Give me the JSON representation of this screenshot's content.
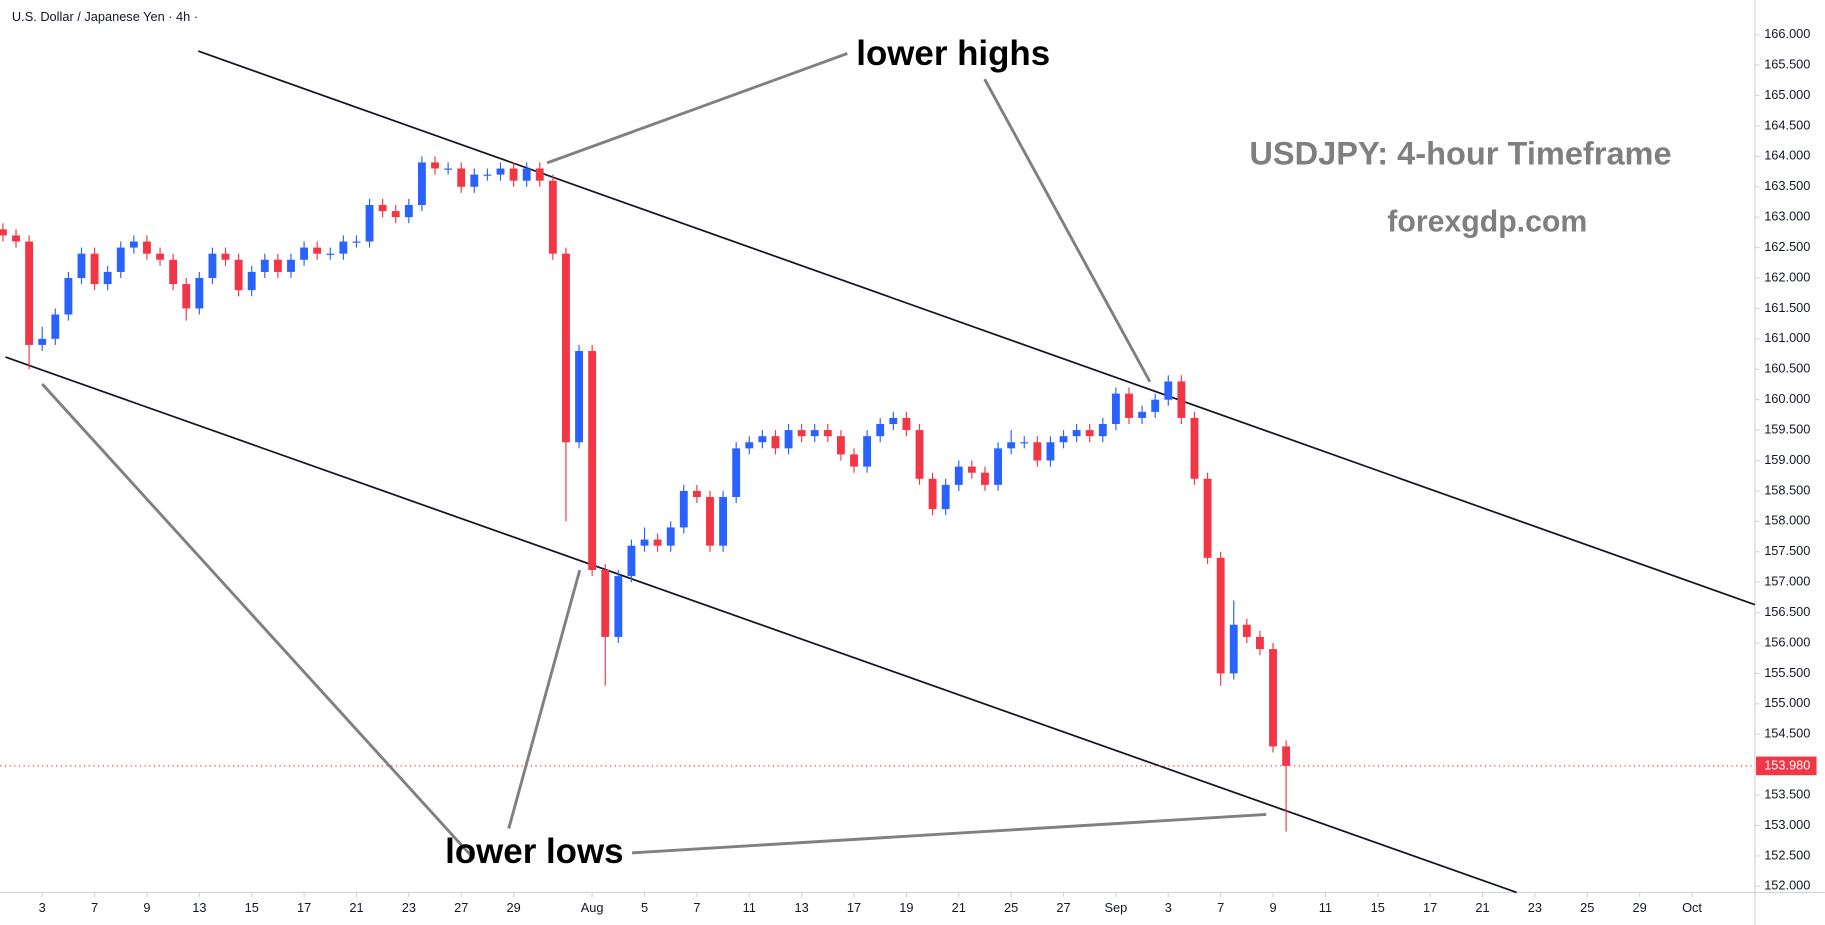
{
  "chart_data": {
    "type": "candlestick",
    "title": "U.S. Dollar / Japanese Yen · 4h ·",
    "annotations": [
      "lower highs",
      "lower lows",
      "USDJPY: 4-hour Timeframe",
      "forexgdp.com"
    ],
    "up_color": "#2962ff",
    "down_color": "#f23645",
    "x": [
      -1.5,
      -1,
      -0.5,
      0,
      0.5,
      1,
      1.5,
      2,
      2.5,
      3,
      3.5,
      4,
      4.5,
      5,
      5.5,
      6,
      6.5,
      7,
      7.5,
      8,
      8.5,
      9,
      9.5,
      10,
      10.5,
      11,
      11.5,
      12,
      12.5,
      13,
      13.5,
      14,
      14.5,
      15,
      15.5,
      16,
      16.5,
      17,
      17.5,
      18,
      18.5,
      19,
      19.5,
      20,
      20.5,
      21,
      21.5,
      22,
      22.5,
      23,
      23.5,
      24,
      24.5,
      25,
      25.5,
      26,
      26.5,
      27,
      27.5,
      28,
      28.5,
      29,
      29.5,
      30,
      30.5,
      31,
      31.5,
      32,
      32.5,
      33,
      33.5,
      34,
      34.5,
      35,
      35.5,
      36,
      36.5,
      37,
      37.5,
      38,
      38.5,
      39,
      39.5,
      40,
      40.5,
      41,
      41.5,
      42,
      42.5,
      43,
      43.5,
      44,
      44.5,
      45,
      45.5,
      46,
      46.5,
      47,
      47.5
    ],
    "open": [
      162.8,
      162.7,
      162.6,
      160.9,
      161.0,
      161.4,
      162.0,
      162.4,
      161.9,
      162.1,
      162.5,
      162.6,
      162.4,
      162.3,
      161.9,
      161.5,
      162.0,
      162.4,
      162.3,
      161.8,
      162.1,
      162.3,
      162.1,
      162.3,
      162.5,
      162.4,
      162.4,
      162.6,
      162.6,
      163.2,
      163.1,
      163.0,
      163.2,
      163.9,
      163.8,
      163.8,
      163.5,
      163.7,
      163.7,
      163.8,
      163.6,
      163.8,
      163.6,
      162.4,
      159.3,
      160.8,
      157.2,
      156.1,
      157.1,
      157.6,
      157.7,
      157.6,
      157.9,
      158.5,
      158.4,
      157.6,
      158.4,
      159.2,
      159.3,
      159.4,
      159.2,
      159.5,
      159.4,
      159.5,
      159.4,
      159.1,
      158.9,
      159.4,
      159.6,
      159.7,
      159.5,
      158.7,
      158.2,
      158.6,
      158.9,
      158.8,
      158.6,
      159.2,
      159.3,
      159.3,
      159.0,
      159.3,
      159.4,
      159.5,
      159.4,
      159.6,
      160.1,
      159.7,
      159.8,
      160.0,
      160.3,
      159.7,
      158.7,
      157.4,
      155.5,
      156.3,
      156.1,
      155.9,
      154.3
    ],
    "high": [
      162.9,
      162.8,
      162.7,
      161.2,
      161.5,
      162.1,
      162.5,
      162.5,
      162.2,
      162.6,
      162.7,
      162.7,
      162.5,
      162.4,
      162.0,
      162.1,
      162.5,
      162.5,
      162.4,
      162.2,
      162.4,
      162.4,
      162.4,
      162.6,
      162.6,
      162.5,
      162.7,
      162.7,
      163.3,
      163.3,
      163.2,
      163.3,
      164.0,
      164.0,
      163.9,
      163.9,
      163.8,
      163.8,
      163.9,
      163.9,
      163.9,
      163.9,
      163.7,
      162.5,
      160.9,
      160.9,
      157.3,
      157.2,
      157.7,
      157.9,
      157.8,
      158.0,
      158.6,
      158.6,
      158.5,
      158.5,
      159.3,
      159.4,
      159.5,
      159.5,
      159.6,
      159.6,
      159.6,
      159.6,
      159.5,
      159.2,
      159.5,
      159.7,
      159.8,
      159.8,
      159.6,
      158.8,
      158.7,
      159.0,
      159.0,
      158.9,
      159.3,
      159.5,
      159.4,
      159.4,
      159.4,
      159.5,
      159.6,
      159.6,
      159.7,
      160.2,
      160.2,
      159.9,
      160.1,
      160.4,
      160.4,
      159.8,
      158.8,
      157.5,
      156.7,
      156.4,
      156.2,
      156.0,
      154.4
    ],
    "low": [
      162.6,
      162.5,
      160.5,
      160.8,
      160.9,
      161.3,
      161.9,
      161.8,
      161.8,
      162.0,
      162.4,
      162.3,
      162.2,
      161.8,
      161.3,
      161.4,
      161.9,
      162.2,
      161.7,
      161.7,
      162.0,
      162.0,
      162.0,
      162.2,
      162.3,
      162.3,
      162.3,
      162.5,
      162.5,
      163.0,
      162.9,
      162.9,
      163.1,
      163.7,
      163.7,
      163.4,
      163.4,
      163.6,
      163.6,
      163.5,
      163.5,
      163.5,
      162.3,
      158.0,
      159.2,
      157.1,
      155.3,
      156.0,
      157.0,
      157.5,
      157.5,
      157.5,
      157.8,
      158.3,
      157.5,
      157.5,
      158.3,
      159.1,
      159.2,
      159.1,
      159.1,
      159.3,
      159.3,
      159.3,
      159.0,
      158.8,
      158.8,
      159.3,
      159.5,
      159.4,
      158.6,
      158.1,
      158.1,
      158.5,
      158.7,
      158.5,
      158.5,
      159.1,
      159.2,
      158.9,
      158.9,
      159.2,
      159.3,
      159.3,
      159.3,
      159.5,
      159.6,
      159.6,
      159.7,
      159.9,
      159.6,
      158.6,
      157.3,
      155.3,
      155.4,
      156.0,
      155.8,
      154.2,
      152.9
    ],
    "close": [
      162.7,
      162.6,
      160.9,
      161.0,
      161.4,
      162.0,
      162.4,
      161.9,
      162.1,
      162.5,
      162.6,
      162.4,
      162.3,
      161.9,
      161.5,
      162.0,
      162.4,
      162.3,
      161.8,
      162.1,
      162.3,
      162.1,
      162.3,
      162.5,
      162.4,
      162.4,
      162.6,
      162.6,
      163.2,
      163.1,
      163.0,
      163.2,
      163.9,
      163.8,
      163.8,
      163.5,
      163.7,
      163.7,
      163.8,
      163.6,
      163.8,
      163.6,
      162.4,
      159.3,
      160.8,
      157.2,
      156.1,
      157.1,
      157.6,
      157.7,
      157.6,
      157.9,
      158.5,
      158.4,
      157.6,
      158.4,
      159.2,
      159.3,
      159.4,
      159.2,
      159.5,
      159.4,
      159.5,
      159.4,
      159.1,
      158.9,
      159.4,
      159.6,
      159.7,
      159.5,
      158.7,
      158.2,
      158.6,
      158.9,
      158.8,
      158.6,
      159.2,
      159.3,
      159.3,
      159.0,
      159.3,
      159.4,
      159.5,
      159.4,
      159.6,
      160.1,
      159.7,
      159.8,
      160.0,
      160.3,
      159.7,
      158.7,
      157.4,
      155.5,
      156.3,
      156.1,
      155.9,
      154.3,
      153.98
    ],
    "last_price": {
      "value": 153.98,
      "label": "153.980"
    },
    "trendlines": [
      {
        "x": [
          5.96,
          65.4
        ],
        "y": [
          165.73,
          156.63
        ]
      },
      {
        "x": [
          -1.4,
          56.3
        ],
        "y": [
          160.7,
          151.9
        ]
      }
    ],
    "xlim": [
      -1.6,
      65.4
    ],
    "xticks": [
      {
        "value": 0,
        "label": "3"
      },
      {
        "value": 2,
        "label": "7"
      },
      {
        "value": 4,
        "label": "9"
      },
      {
        "value": 6,
        "label": "13"
      },
      {
        "value": 8,
        "label": "15"
      },
      {
        "value": 10,
        "label": "17"
      },
      {
        "value": 12,
        "label": "21"
      },
      {
        "value": 14,
        "label": "23"
      },
      {
        "value": 16,
        "label": "27"
      },
      {
        "value": 18,
        "label": "29"
      },
      {
        "value": 21,
        "label": "Aug"
      },
      {
        "value": 23,
        "label": "5"
      },
      {
        "value": 25,
        "label": "7"
      },
      {
        "value": 27,
        "label": "11"
      },
      {
        "value": 29,
        "label": "13"
      },
      {
        "value": 31,
        "label": "17"
      },
      {
        "value": 33,
        "label": "19"
      },
      {
        "value": 35,
        "label": "21"
      },
      {
        "value": 37,
        "label": "25"
      },
      {
        "value": 39,
        "label": "27"
      },
      {
        "value": 41,
        "label": "Sep"
      },
      {
        "value": 43,
        "label": "3"
      },
      {
        "value": 45,
        "label": "7"
      },
      {
        "value": 47,
        "label": "9"
      },
      {
        "value": 49,
        "label": "11"
      },
      {
        "value": 51,
        "label": "15"
      },
      {
        "value": 53,
        "label": "17"
      },
      {
        "value": 55,
        "label": "21"
      },
      {
        "value": 57,
        "label": "23"
      },
      {
        "value": 59,
        "label": "25"
      },
      {
        "value": 61,
        "label": "29"
      },
      {
        "value": 63,
        "label": "Oct"
      }
    ],
    "ylim": [
      151.9,
      166.57
    ],
    "yticks": [
      {
        "value": 152,
        "label": "152.000"
      },
      {
        "value": 152.5,
        "label": "152.500"
      },
      {
        "value": 153,
        "label": "153.000"
      },
      {
        "value": 153.5,
        "label": "153.500"
      },
      {
        "value": 154,
        "label": "154.000"
      },
      {
        "value": 154.5,
        "label": "154.500"
      },
      {
        "value": 155,
        "label": "155.000"
      },
      {
        "value": 155.5,
        "label": "155.500"
      },
      {
        "value": 156,
        "label": "156.000"
      },
      {
        "value": 156.5,
        "label": "156.500"
      },
      {
        "value": 157,
        "label": "157.000"
      },
      {
        "value": 157.5,
        "label": "157.500"
      },
      {
        "value": 158,
        "label": "158.000"
      },
      {
        "value": 158.5,
        "label": "158.500"
      },
      {
        "value": 159,
        "label": "159.000"
      },
      {
        "value": 159.5,
        "label": "159.500"
      },
      {
        "value": 160,
        "label": "160.000"
      },
      {
        "value": 160.5,
        "label": "160.500"
      },
      {
        "value": 161,
        "label": "161.000"
      },
      {
        "value": 161.5,
        "label": "161.500"
      },
      {
        "value": 162,
        "label": "162.000"
      },
      {
        "value": 162.5,
        "label": "162.500"
      },
      {
        "value": 163,
        "label": "163.000"
      },
      {
        "value": 163.5,
        "label": "163.500"
      },
      {
        "value": 164,
        "label": "164.000"
      },
      {
        "value": 164.5,
        "label": "164.500"
      },
      {
        "value": 165,
        "label": "165.000"
      },
      {
        "value": 165.5,
        "label": "165.500"
      },
      {
        "value": 166,
        "label": "166.000"
      }
    ],
    "grid": false
  }
}
